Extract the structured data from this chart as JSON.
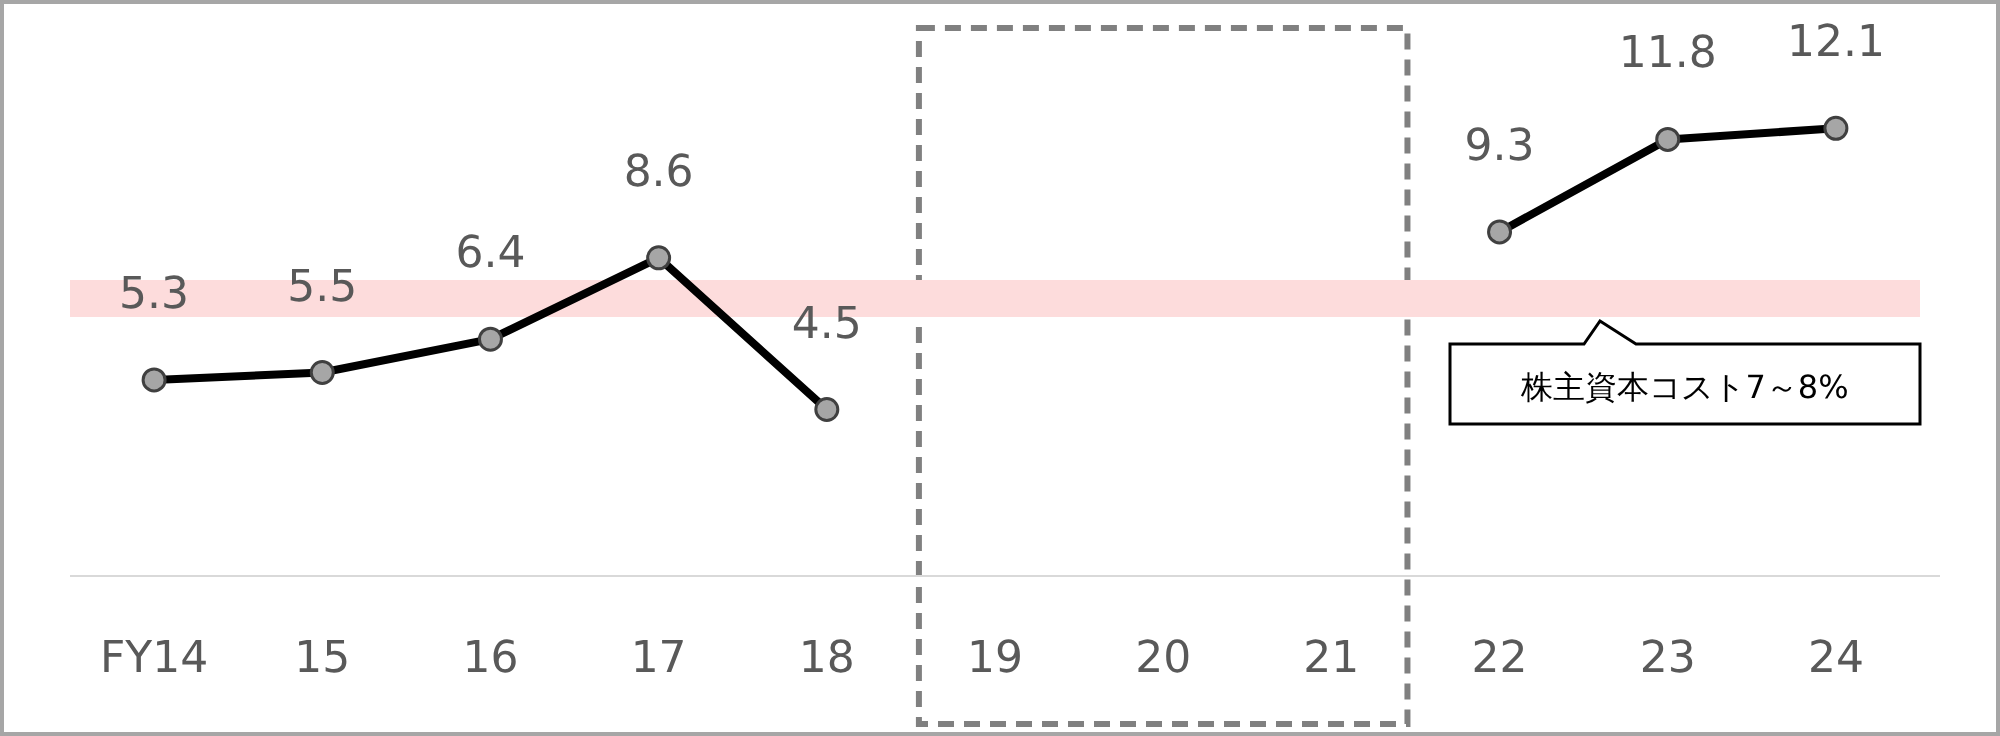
{
  "chart_data": {
    "type": "line",
    "categories": [
      "FY14",
      "15",
      "16",
      "17",
      "18",
      "19",
      "20",
      "21",
      "22",
      "23",
      "24"
    ],
    "series": [
      {
        "color": "#000000",
        "values": [
          5.3,
          5.5,
          6.4,
          8.6,
          4.5,
          null,
          null,
          null,
          9.3,
          11.8,
          12.1
        ]
      }
    ],
    "data_labels": true,
    "marker": "circle",
    "line_style": "solid",
    "tick_labels": "x",
    "bands": [
      {
        "axis": "y",
        "from": 7,
        "to": 8,
        "label": "株主資本コスト7～8%",
        "color": "#fddcdc"
      }
    ]
  }
}
